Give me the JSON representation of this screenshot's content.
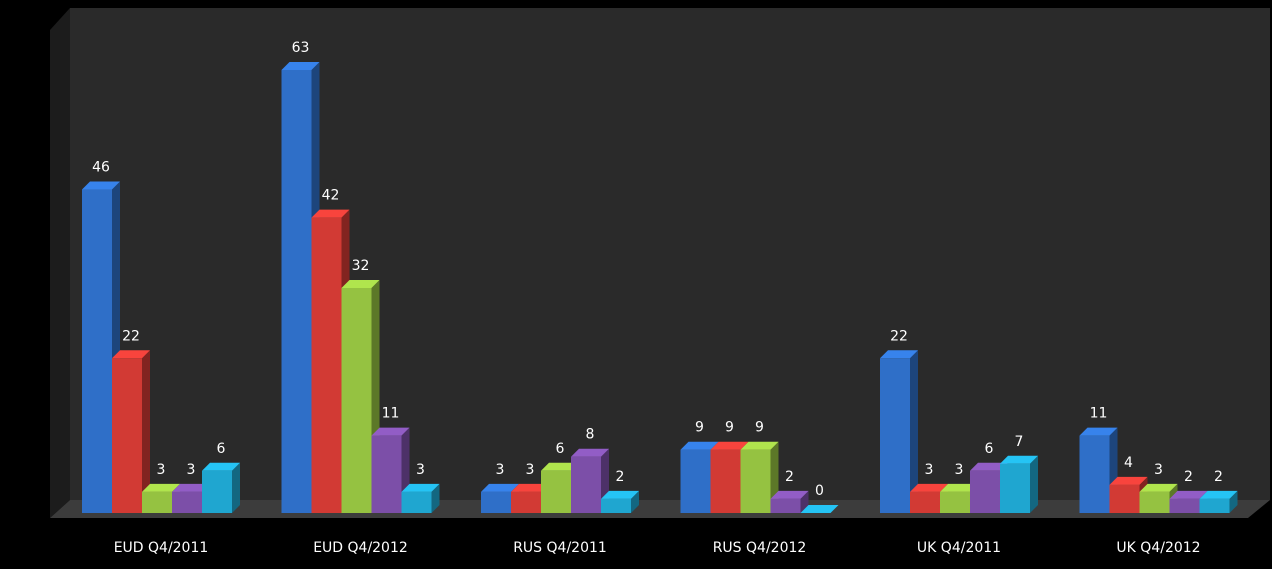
{
  "chart_data": {
    "type": "bar",
    "title": "",
    "xlabel": "",
    "ylabel": "",
    "ylim": [
      0,
      70
    ],
    "grid": false,
    "legend": "none",
    "categories": [
      "EUD Q4/2011",
      "EUD Q4/2012",
      "RUS Q4/2011",
      "RUS Q4/2012",
      "UK Q4/2011",
      "UK Q4/2012"
    ],
    "series": [
      {
        "color": "#2f6fc8",
        "values": [
          46,
          63,
          3,
          9,
          22,
          11
        ]
      },
      {
        "color": "#d23a34",
        "values": [
          22,
          42,
          3,
          9,
          3,
          4
        ]
      },
      {
        "color": "#95c241",
        "values": [
          3,
          32,
          6,
          9,
          3,
          3
        ]
      },
      {
        "color": "#7c4fa8",
        "values": [
          3,
          11,
          8,
          2,
          6,
          2
        ]
      },
      {
        "color": "#1fa6d0",
        "values": [
          6,
          3,
          2,
          0,
          7,
          2
        ]
      }
    ]
  },
  "colors": {
    "background": "#000000",
    "wall": "#2a2a2a",
    "floor": "#3a3a3a",
    "text": "#ffffff"
  }
}
